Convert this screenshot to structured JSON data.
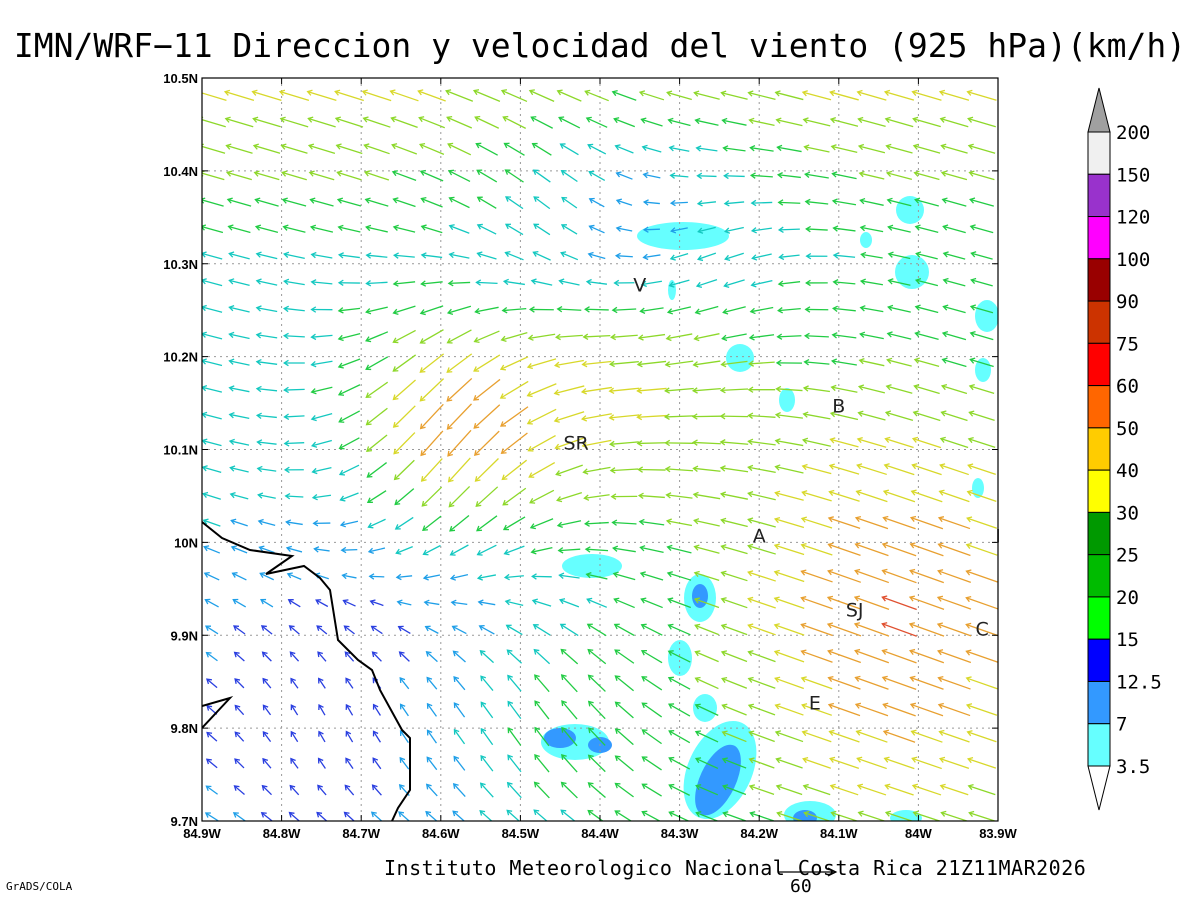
{
  "title": "IMN/WRF−11 Direccion y velocidad del viento (925 hPa)(km/h)",
  "footer": {
    "credit": "Instituto Meteorologico Nacional Costa Rica 21Z11MAR2026",
    "software": "GrADS/COLA",
    "reference_vector_label": "60"
  },
  "axes": {
    "lon_ticks": [
      "84.9W",
      "84.8W",
      "84.7W",
      "84.6W",
      "84.5W",
      "84.4W",
      "84.3W",
      "84.2W",
      "84.1W",
      "84W",
      "83.9W"
    ],
    "lat_ticks": [
      "10.5N",
      "10.4N",
      "10.3N",
      "10.2N",
      "10.1N",
      "10N",
      "9.9N",
      "9.8N",
      "9.7N"
    ],
    "lon_range": [
      -84.9,
      -83.9
    ],
    "lat_range": [
      9.7,
      10.5
    ],
    "grid": "dotted"
  },
  "places": [
    {
      "label": "V",
      "lon": -84.35,
      "lat": 10.27
    },
    {
      "label": "SR",
      "lon": -84.43,
      "lat": 10.1
    },
    {
      "label": "B",
      "lon": -84.1,
      "lat": 10.14
    },
    {
      "label": "A",
      "lon": -84.2,
      "lat": 10.0
    },
    {
      "label": "SJ",
      "lon": -84.08,
      "lat": 9.92
    },
    {
      "label": "C",
      "lon": -83.92,
      "lat": 9.9
    },
    {
      "label": "E",
      "lon": -84.13,
      "lat": 9.82
    },
    {
      "label": "I",
      "lon": -83.9,
      "lat": 10.0
    }
  ],
  "colorbar": {
    "levels": [
      "200",
      "150",
      "120",
      "100",
      "90",
      "75",
      "60",
      "50",
      "40",
      "30",
      "25",
      "20",
      "15",
      "12.5",
      "7",
      "3.5"
    ],
    "colors": [
      "#a0a0a0",
      "#f0f0f0",
      "#9932cc",
      "#ff00ff",
      "#990000",
      "#cc3300",
      "#ff0000",
      "#ff6600",
      "#ffcc00",
      "#ffff00",
      "#009900",
      "#00bb00",
      "#00ff00",
      "#0000ff",
      "#3399ff",
      "#66ffff"
    ]
  },
  "wind_color_scale": [
    "#8b00b0",
    "#2a3fe0",
    "#1f9fe8",
    "#14c8c0",
    "#22cc44",
    "#8dd82a",
    "#d8d82a",
    "#e8a030",
    "#e05030",
    "#e0104a"
  ]
}
